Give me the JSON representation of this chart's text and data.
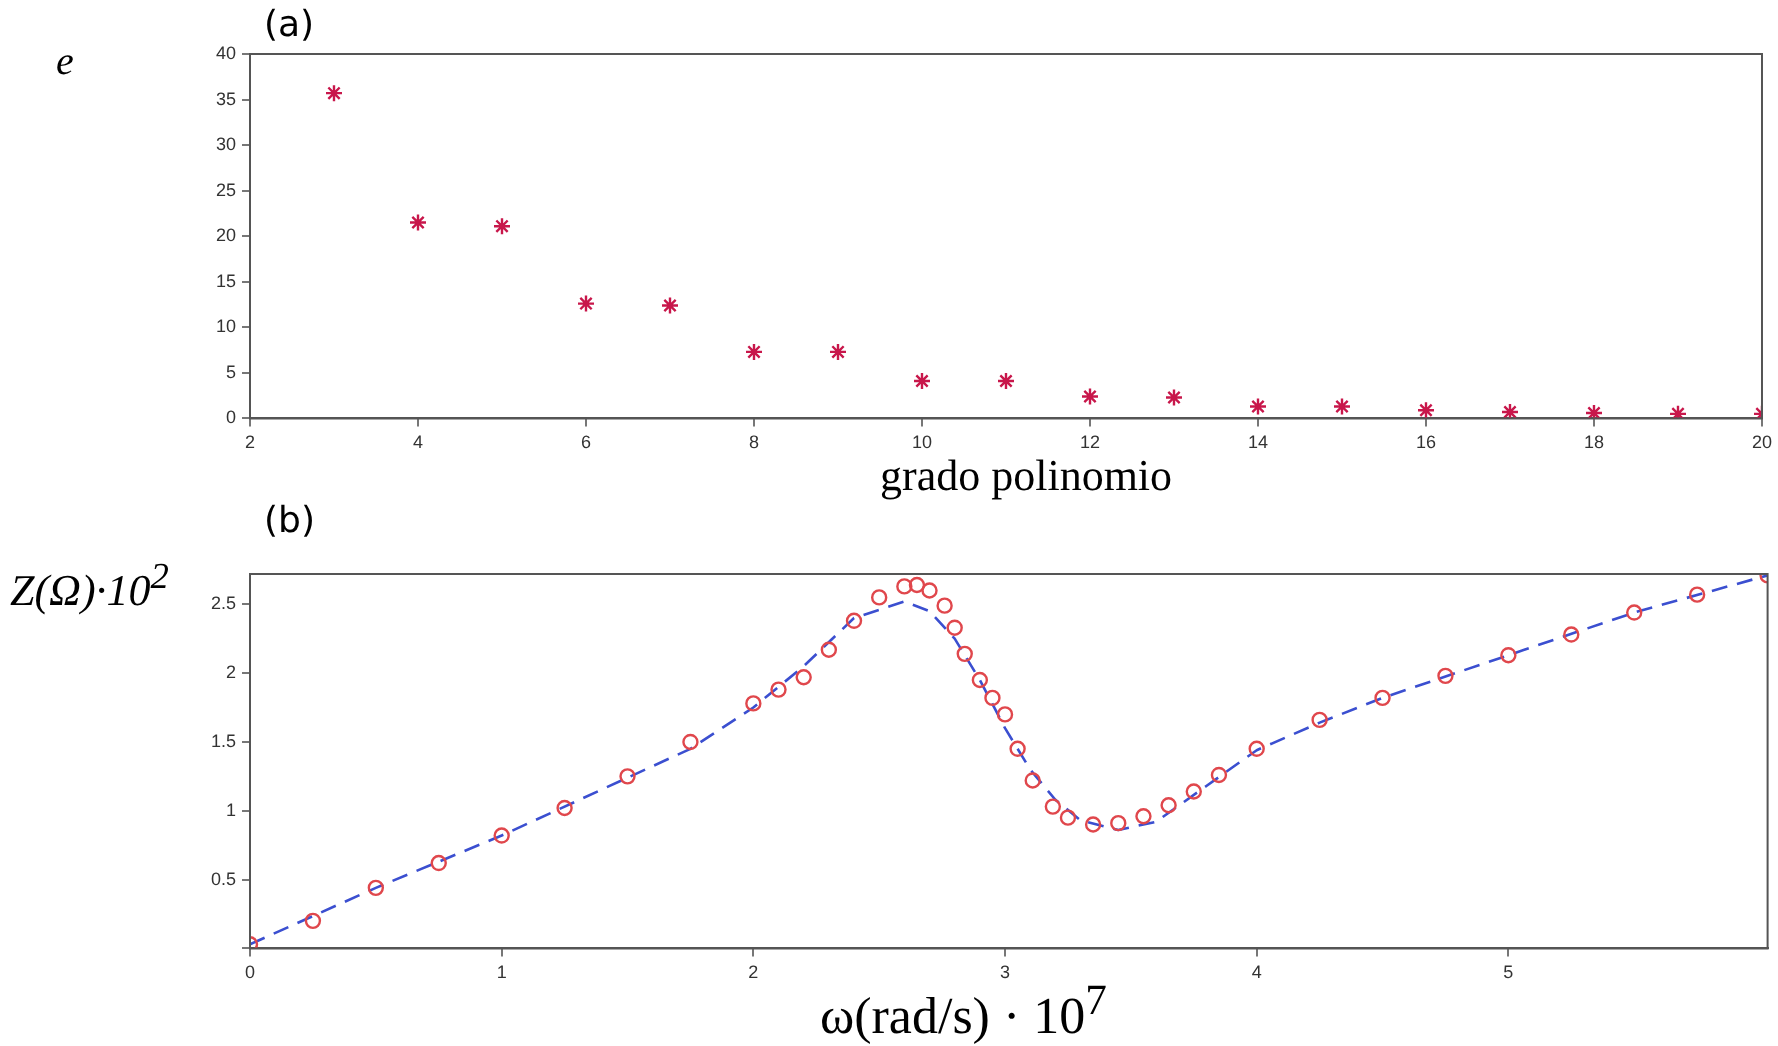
{
  "chart_data": [
    {
      "type": "scatter",
      "title": "(a)",
      "ylabel": "e",
      "xlabel": "grado polinomio",
      "x": [
        3,
        4,
        5,
        6,
        7,
        8,
        9,
        10,
        11,
        12,
        13,
        14,
        15,
        16,
        17,
        18,
        19,
        20
      ],
      "series": [
        {
          "color": "#c8174b",
          "marker": "cross",
          "values": [
            35.7,
            21.5,
            21.1,
            12.6,
            12.4,
            7.3,
            7.3,
            4.1,
            4.1,
            2.4,
            2.3,
            1.3,
            1.3,
            0.9,
            0.7,
            0.6,
            0.5,
            0.5
          ]
        }
      ],
      "xlim": [
        2,
        20
      ],
      "xticks": [
        2,
        4,
        6,
        8,
        10,
        12,
        14,
        16,
        18,
        20
      ],
      "ylim": [
        0,
        40
      ],
      "yticks": [
        0,
        5,
        10,
        15,
        20,
        25,
        30,
        35,
        40
      ],
      "grid": false,
      "legend": false
    },
    {
      "type": "scatter",
      "title": "(b)",
      "ylabel": "Z(Ω)·10$^{2}$",
      "xlabel": "ω(rad/s) · 10$^{7}$",
      "series": [
        {
          "type": "scatter",
          "color": "#e0474c",
          "marker": "circle",
          "x": [
            0,
            0.25,
            0.5,
            0.75,
            1.0,
            1.25,
            1.5,
            1.75,
            2.0,
            2.1,
            2.2,
            2.3,
            2.4,
            2.5,
            2.6,
            2.65,
            2.7,
            2.76,
            2.8,
            2.84,
            2.9,
            2.95,
            3.0,
            3.05,
            3.11,
            3.19,
            3.25,
            3.35,
            3.45,
            3.55,
            3.65,
            3.75,
            3.85,
            4.0,
            4.25,
            4.5,
            4.75,
            5.0,
            5.25,
            5.5,
            5.75,
            6.03
          ],
          "values": [
            0.03,
            0.2,
            0.44,
            0.62,
            0.82,
            1.02,
            1.25,
            1.5,
            1.78,
            1.88,
            1.97,
            2.17,
            2.38,
            2.55,
            2.63,
            2.64,
            2.6,
            2.49,
            2.33,
            2.14,
            1.95,
            1.82,
            1.7,
            1.45,
            1.22,
            1.03,
            0.95,
            0.9,
            0.91,
            0.96,
            1.04,
            1.14,
            1.26,
            1.45,
            1.66,
            1.82,
            1.98,
            2.13,
            2.28,
            2.44,
            2.57,
            2.71
          ]
        },
        {
          "type": "line",
          "color": "#3b4fd0",
          "marker": "none",
          "line_style": "dashed",
          "x": [
            0,
            0.5,
            1.0,
            1.5,
            1.75,
            2.0,
            2.2,
            2.4,
            2.6,
            2.7,
            2.8,
            2.9,
            3.0,
            3.1,
            3.2,
            3.3,
            3.45,
            3.6,
            3.8,
            4.0,
            4.25,
            4.5,
            5.0,
            5.5,
            6.03
          ],
          "values": [
            0.03,
            0.44,
            0.82,
            1.24,
            1.45,
            1.75,
            2.05,
            2.4,
            2.52,
            2.45,
            2.25,
            1.95,
            1.6,
            1.3,
            1.08,
            0.93,
            0.86,
            0.92,
            1.18,
            1.44,
            1.64,
            1.82,
            2.13,
            2.44,
            2.71
          ]
        }
      ],
      "xlim": [
        0,
        6.03
      ],
      "xticks": [
        0,
        1,
        2,
        3,
        4,
        5
      ],
      "ylim": [
        0,
        2.72
      ],
      "yticks": [
        {
          "value": 0,
          "label": null
        },
        0.5,
        1,
        1.5,
        2,
        2.5
      ],
      "grid": false,
      "legend": false
    }
  ]
}
